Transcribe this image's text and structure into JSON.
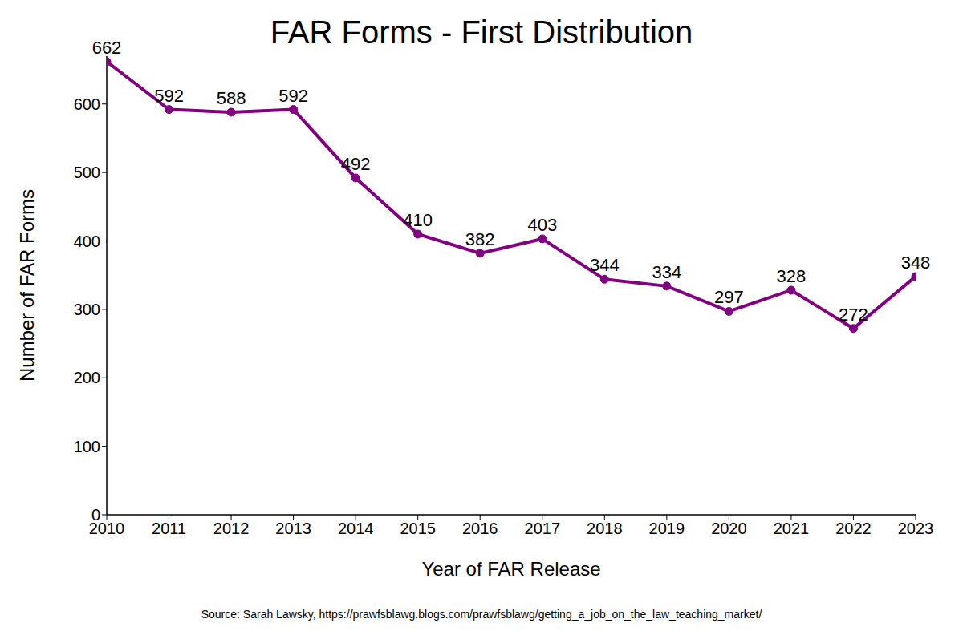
{
  "chart_data": {
    "type": "line",
    "title": "FAR Forms - First Distribution",
    "x_label": "Year of FAR Release",
    "y_label": "Number of FAR Forms",
    "source": "Source: Sarah Lawsky, https://prawfsblawg.blogs.com/prawfsblawg/getting_a_job_on_the_law_teaching_market/",
    "x": [
      2010,
      2011,
      2012,
      2013,
      2014,
      2015,
      2016,
      2017,
      2018,
      2019,
      2020,
      2021,
      2022,
      2023
    ],
    "values": [
      662,
      592,
      588,
      592,
      492,
      410,
      382,
      403,
      344,
      334,
      297,
      328,
      272,
      348
    ],
    "color": "#800080",
    "xlim": [
      2010,
      2023
    ],
    "xticks": [
      2010,
      2011,
      2012,
      2013,
      2014,
      2015,
      2016,
      2017,
      2018,
      2019,
      2020,
      2021,
      2022,
      2023
    ],
    "ylim": [
      0,
      670
    ],
    "yticks": [
      0,
      100,
      200,
      300,
      400,
      500,
      600
    ],
    "grid": false,
    "data_labels": true,
    "marker": "circle",
    "line_style": "solid"
  }
}
